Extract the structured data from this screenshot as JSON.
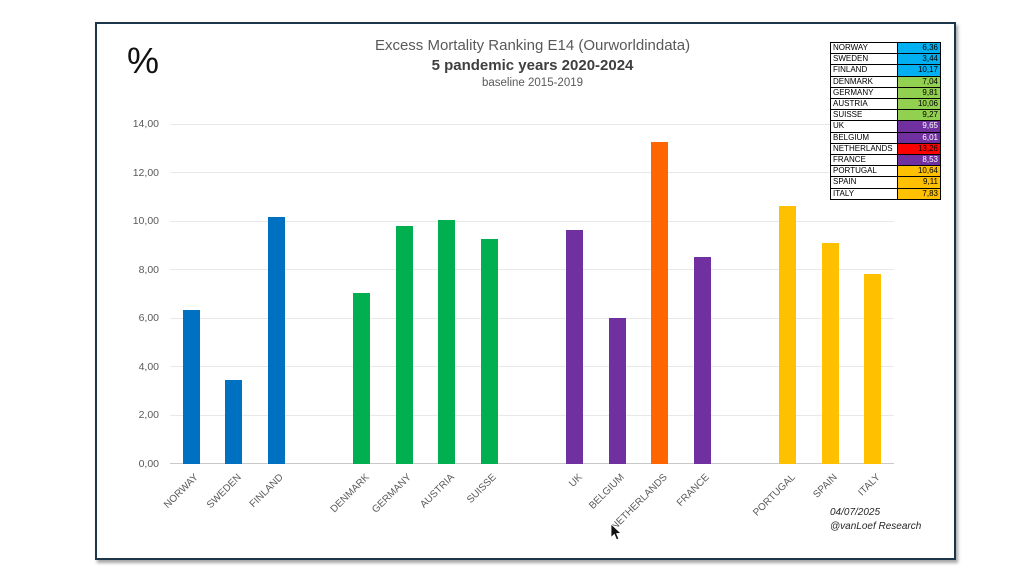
{
  "panel": {
    "border_color": "#1d3649",
    "background": "#ffffff"
  },
  "footer": {
    "date": "04/07/2025",
    "credit": "@vanLoef Research"
  },
  "chart_data": {
    "type": "bar",
    "title": "Excess Mortality Ranking E14 (Ourworldindata)",
    "subtitle": "5 pandemic years 2020-2024",
    "baseline_note": "baseline 2015-2019",
    "ylabel": "%",
    "xlabel": "",
    "ylim": [
      0,
      14
    ],
    "grid": true,
    "legend_position": "top-right",
    "decimal_style": "comma",
    "yticks": [
      {
        "v": 0,
        "label": "0,00"
      },
      {
        "v": 2,
        "label": "2,00"
      },
      {
        "v": 4,
        "label": "4,00"
      },
      {
        "v": 6,
        "label": "6,00"
      },
      {
        "v": 8,
        "label": "8,00"
      },
      {
        "v": 10,
        "label": "10,00"
      },
      {
        "v": 12,
        "label": "12,00"
      },
      {
        "v": 14,
        "label": "14,00"
      }
    ],
    "bars": [
      {
        "country": "NORWAY",
        "value": 6.36,
        "display": "6,36",
        "group": 1,
        "bar_color": "#0070C0",
        "legend_color": "#00B0F0",
        "legend_text_color": "#000000"
      },
      {
        "country": "SWEDEN",
        "value": 3.44,
        "display": "3,44",
        "group": 1,
        "bar_color": "#0070C0",
        "legend_color": "#00B0F0",
        "legend_text_color": "#000000"
      },
      {
        "country": "FINLAND",
        "value": 10.17,
        "display": "10,17",
        "group": 1,
        "bar_color": "#0070C0",
        "legend_color": "#00B0F0",
        "legend_text_color": "#000000"
      },
      {
        "country": "DENMARK",
        "value": 7.04,
        "display": "7,04",
        "group": 2,
        "bar_color": "#00B050",
        "legend_color": "#92D050",
        "legend_text_color": "#000000"
      },
      {
        "country": "GERMANY",
        "value": 9.81,
        "display": "9,81",
        "group": 2,
        "bar_color": "#00B050",
        "legend_color": "#92D050",
        "legend_text_color": "#000000"
      },
      {
        "country": "AUSTRIA",
        "value": 10.06,
        "display": "10,06",
        "group": 2,
        "bar_color": "#00B050",
        "legend_color": "#92D050",
        "legend_text_color": "#000000"
      },
      {
        "country": "SUISSE",
        "value": 9.27,
        "display": "9,27",
        "group": 2,
        "bar_color": "#00B050",
        "legend_color": "#92D050",
        "legend_text_color": "#000000"
      },
      {
        "country": "UK",
        "value": 9.65,
        "display": "9,65",
        "group": 3,
        "bar_color": "#7030A0",
        "legend_color": "#7030A0",
        "legend_text_color": "#FFFFFF"
      },
      {
        "country": "BELGIUM",
        "value": 6.01,
        "display": "6,01",
        "group": 3,
        "bar_color": "#7030A0",
        "legend_color": "#7030A0",
        "legend_text_color": "#FFFFFF"
      },
      {
        "country": "NETHERLANDS",
        "value": 13.26,
        "display": "13,26",
        "group": 3,
        "bar_color": "#FF6600",
        "legend_color": "#FF0000",
        "legend_text_color": "#000000"
      },
      {
        "country": "FRANCE",
        "value": 8.53,
        "display": "8,53",
        "group": 3,
        "bar_color": "#7030A0",
        "legend_color": "#7030A0",
        "legend_text_color": "#FFFFFF"
      },
      {
        "country": "PORTUGAL",
        "value": 10.64,
        "display": "10,64",
        "group": 4,
        "bar_color": "#FFC000",
        "legend_color": "#FFC000",
        "legend_text_color": "#000000"
      },
      {
        "country": "SPAIN",
        "value": 9.11,
        "display": "9,11",
        "group": 4,
        "bar_color": "#FFC000",
        "legend_color": "#FFC000",
        "legend_text_color": "#000000"
      },
      {
        "country": "ITALY",
        "value": 7.83,
        "display": "7,83",
        "group": 4,
        "bar_color": "#FFC000",
        "legend_color": "#FFC000",
        "legend_text_color": "#000000"
      }
    ]
  }
}
